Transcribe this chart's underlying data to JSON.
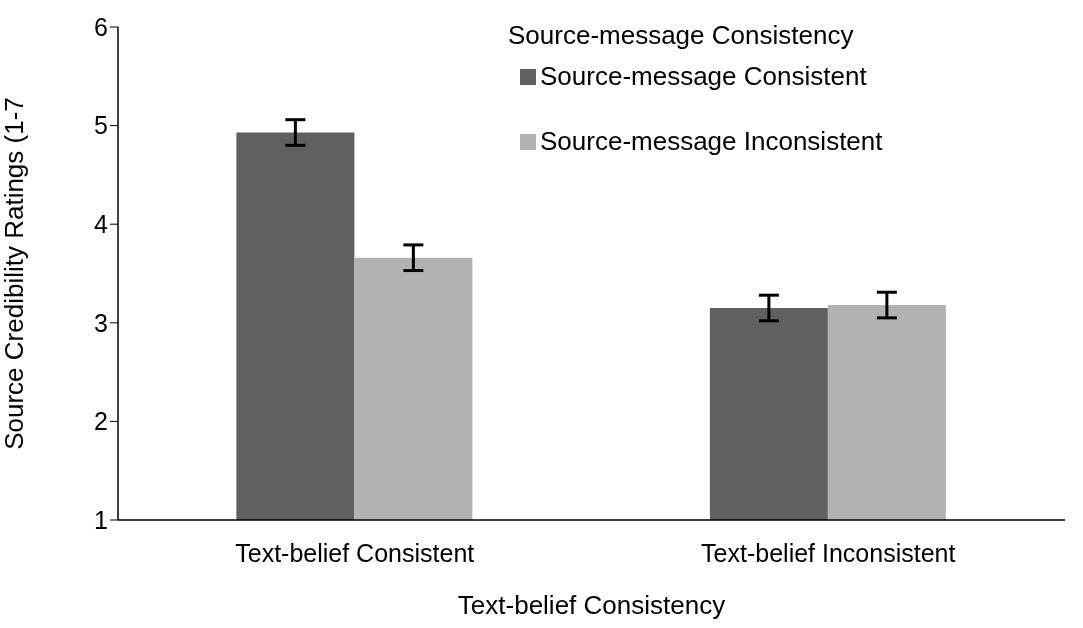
{
  "chart_data": {
    "type": "bar",
    "xlabel": "Text-belief Consistency",
    "ylabel": "Source Credibility Ratings (1-7",
    "legend_title": "Source-message Consistency",
    "categories": [
      "Text-belief Consistent",
      "Text-belief Inconsistent"
    ],
    "series": [
      {
        "name": "Source-message Consistent",
        "color": "#606060",
        "values": [
          4.93,
          3.15
        ],
        "errors": [
          0.13,
          0.13
        ]
      },
      {
        "name": "Source-message Inconsistent",
        "color": "#b2b2b2",
        "values": [
          3.66,
          3.18
        ],
        "errors": [
          0.13,
          0.13
        ]
      }
    ],
    "ylim": [
      1,
      6
    ],
    "yticks": [
      1,
      2,
      3,
      4,
      5,
      6
    ],
    "grid": false,
    "legend": "top right"
  }
}
